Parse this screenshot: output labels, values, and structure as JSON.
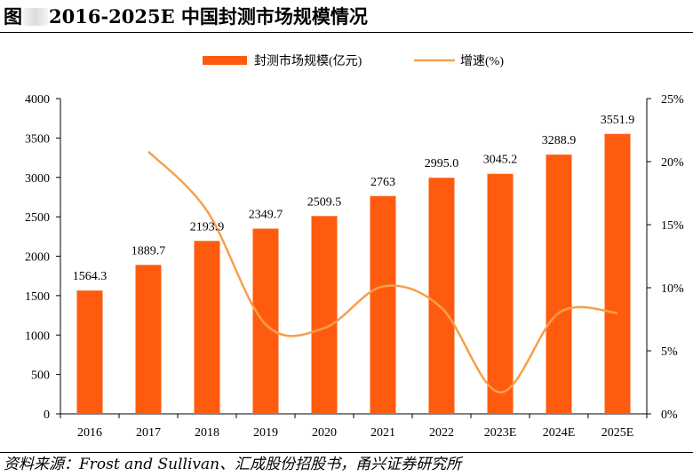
{
  "figure": {
    "title_prefix": "图",
    "title_main": "2016-2025E 中国封测市场规模情况",
    "source": "资料来源：Frost and Sullivan、汇成股份招股书，甬兴证券研究所"
  },
  "chart_data": {
    "type": "bar+line",
    "title": "2016-2025E 中国封测市场规模情况",
    "categories": [
      "2016",
      "2017",
      "2018",
      "2019",
      "2020",
      "2021",
      "2022",
      "2023E",
      "2024E",
      "2025E"
    ],
    "series": [
      {
        "name": "封测市场规模(亿元)",
        "type": "bar",
        "axis": "left",
        "color": "#ff5b0f",
        "values": [
          1564.3,
          1889.7,
          2193.9,
          2349.7,
          2509.5,
          2763,
          2995.0,
          3045.2,
          3288.9,
          3551.9
        ],
        "labels": [
          "1564.3",
          "1889.7",
          "2193.9",
          "2349.7",
          "2509.5",
          "2763",
          "2995.0",
          "3045.2",
          "3288.9",
          "3551.9"
        ]
      },
      {
        "name": "增速(%)",
        "type": "line",
        "axis": "right",
        "color": "#f6a04d",
        "values": [
          null,
          20.8,
          16.1,
          7.1,
          6.8,
          10.1,
          8.4,
          1.7,
          8.0,
          8.0
        ]
      }
    ],
    "y_left": {
      "min": 0,
      "max": 4000,
      "step": 500,
      "ticks": [
        "0",
        "500",
        "1000",
        "1500",
        "2000",
        "2500",
        "3000",
        "3500",
        "4000"
      ]
    },
    "y_right": {
      "min": 0,
      "max": 25,
      "step": 5,
      "ticks": [
        "0%",
        "5%",
        "10%",
        "15%",
        "20%",
        "25%"
      ]
    },
    "legend_position": "top",
    "grid": false
  }
}
